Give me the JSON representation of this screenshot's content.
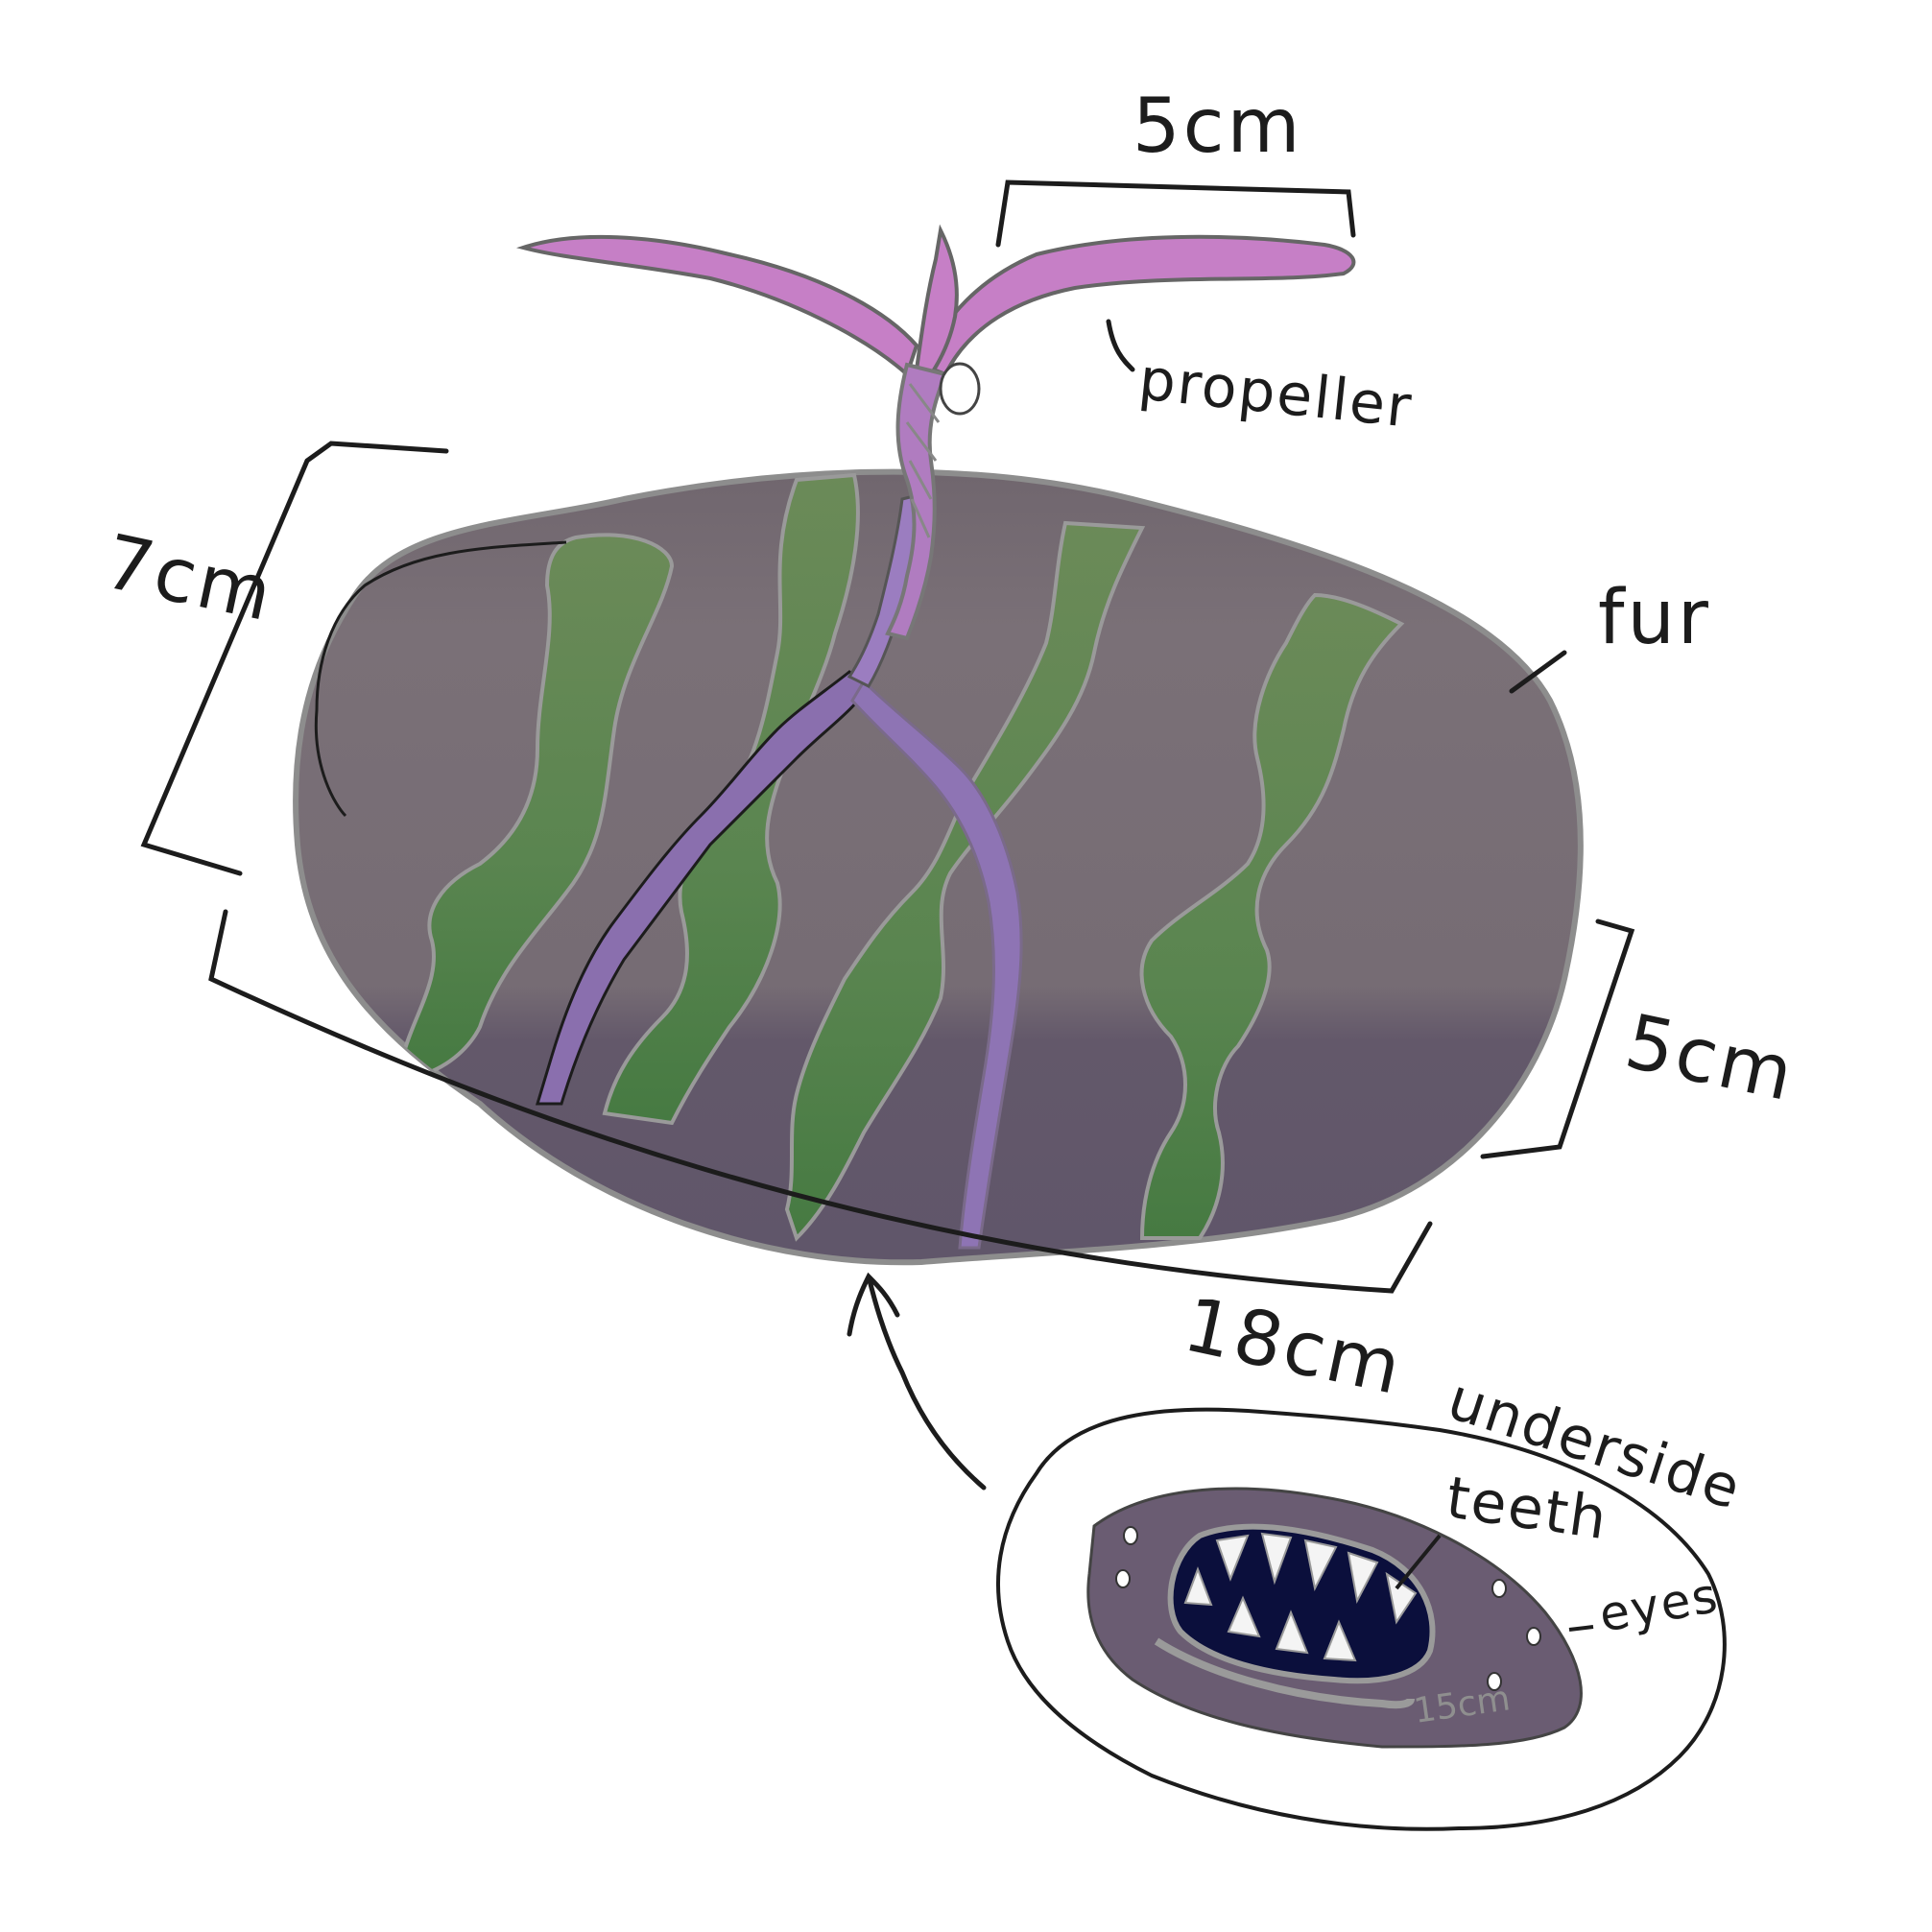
{
  "labels": {
    "propeller_width": "5cm",
    "propeller": "propeller",
    "height": "7cm",
    "fur": "fur",
    "depth": "5cm",
    "length": "18cm",
    "underside": "underside",
    "teeth": "teeth",
    "eyes": "eyes",
    "mouth_width": "15cm"
  },
  "colors": {
    "body_gray": "#786d74",
    "body_dark": "#625869",
    "stripe_green": "#668457",
    "stripe_dark_green": "#4c7b45",
    "vein_purple": "#8c70b0",
    "propeller_pink": "#c67fc6",
    "mouth_navy": "#0b0f3c",
    "underside_body": "#6a5c72",
    "outline": "#1c1c1c"
  }
}
